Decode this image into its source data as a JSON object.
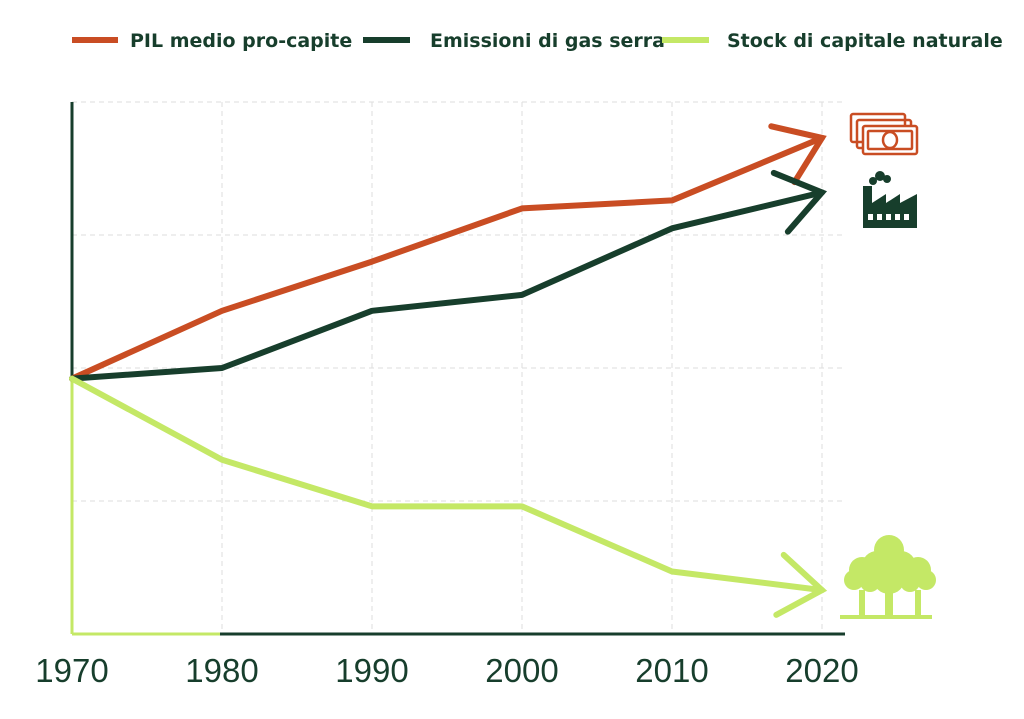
{
  "colors": {
    "gdp": "#c94d23",
    "emissions": "#173e2c",
    "natural_capital": "#c4e866",
    "text": "#173e2c",
    "grid": "#dddddd"
  },
  "icons": {
    "gdp": "money-bills-icon",
    "emissions": "factory-icon",
    "natural_capital": "trees-icon"
  },
  "chart_data": {
    "type": "line",
    "x": [
      1970,
      1980,
      1990,
      2000,
      2010,
      2020
    ],
    "xlim": [
      1970,
      2020
    ],
    "ylim": [
      0,
      4
    ],
    "grid": true,
    "legend_position": "top",
    "yaxis_ticks_labeled": false,
    "series": [
      {
        "key": "gdp",
        "name": "PIL medio pro-capite",
        "values": [
          1.92,
          2.43,
          2.8,
          3.2,
          3.26,
          3.73
        ]
      },
      {
        "key": "emissions",
        "name": "Emissioni di gas serra",
        "values": [
          1.92,
          2.0,
          2.43,
          2.55,
          3.05,
          3.32
        ]
      },
      {
        "key": "natural_capital",
        "name": "Stock di capitale naturale",
        "values": [
          1.92,
          1.31,
          0.96,
          0.96,
          0.47,
          0.33
        ]
      }
    ]
  }
}
